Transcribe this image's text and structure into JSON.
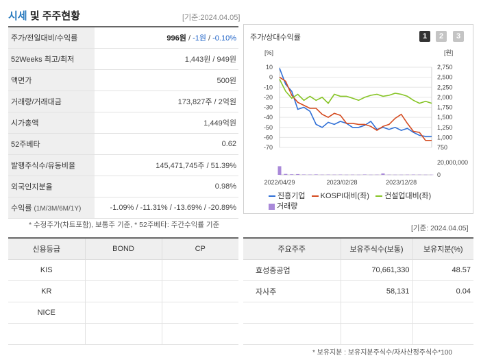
{
  "header": {
    "title_main": "시세",
    "title_rest": "및 주주현황",
    "date": "[기준:2024.04.05]"
  },
  "price_table": {
    "rows": [
      {
        "label": "주가/전일대비/수익률",
        "v1": "996원",
        "sep1": " / ",
        "v2": "-1원",
        "sep2": " / ",
        "v3": "-0.10%"
      },
      {
        "label": "52Weeks 최고/최저",
        "value": "1,443원 / 949원"
      },
      {
        "label": "액면가",
        "value": "500원"
      },
      {
        "label": "거래량/거래대금",
        "value": "173,827주 / 2억원"
      },
      {
        "label": "시가총액",
        "value": "1,449억원"
      },
      {
        "label": "52주베타",
        "value": "0.62"
      },
      {
        "label": "발행주식수/유동비율",
        "value": "145,471,745주 / 51.39%"
      },
      {
        "label": "외국인지분율",
        "value": "0.98%"
      },
      {
        "label": "수익률",
        "label_sub": "(1M/3M/6M/1Y)",
        "value": "-1.09% / -11.31% / -13.69% / -20.89%"
      }
    ],
    "note": "* 수정주가(차트포함), 보통주 기준, * 52주베타: 주간수익률 기준"
  },
  "chart_panel": {
    "title": "주가/상대수익률",
    "tabs": [
      "1",
      "2",
      "3"
    ],
    "legend": [
      {
        "name": "진흥기업",
        "color": "#2f6fd6"
      },
      {
        "name": "KOSPI대비(좌)",
        "color": "#d44a1f"
      },
      {
        "name": "건설업대비(좌)",
        "color": "#86c425"
      },
      {
        "name": "거래량",
        "color": "#a989d9"
      }
    ]
  },
  "chart_data": {
    "type": "line",
    "left_axis": {
      "unit": "[%]",
      "range": [
        -70,
        10
      ],
      "ticks": [
        "10",
        "0",
        "-10",
        "-20",
        "-30",
        "-40",
        "-50",
        "-60",
        "-70"
      ]
    },
    "right_axis": {
      "unit": "[원]",
      "range": [
        750,
        2750
      ],
      "ticks": [
        "2,750",
        "2,500",
        "2,250",
        "2,000",
        "1,750",
        "1,500",
        "1,250",
        "1,000",
        "750"
      ]
    },
    "volume_axis": {
      "ticks": [
        "20,000,000",
        "0"
      ],
      "range": [
        0,
        20000000
      ]
    },
    "x_labels": [
      "2022/04/29",
      "2023/02/28",
      "2023/12/28"
    ],
    "x_label_positions": [
      0,
      0.41,
      0.8
    ],
    "series": [
      {
        "name": "진흥기업",
        "values": [
          9,
          -7,
          -14,
          -32,
          -30,
          -34,
          -47,
          -50,
          -45,
          -47,
          -44,
          -46,
          -50,
          -50,
          -48,
          -44,
          -52,
          -50,
          -52,
          -50,
          -53,
          -51,
          -55,
          -58,
          -59,
          -59
        ]
      },
      {
        "name": "KOSPI대비(좌)",
        "values": [
          0,
          -4,
          -18,
          -25,
          -28,
          -31,
          -31,
          -37,
          -40,
          -36,
          -38,
          -46,
          -46,
          -47,
          -47,
          -49,
          -53,
          -49,
          -47,
          -41,
          -37,
          -46,
          -54,
          -55,
          -63,
          -63
        ]
      },
      {
        "name": "건설업대비(좌)",
        "values": [
          -2,
          -14,
          -21,
          -17,
          -23,
          -19,
          -23,
          -20,
          -26,
          -17,
          -19,
          -19,
          -21,
          -23,
          -20,
          -18,
          -17,
          -19,
          -18,
          -16,
          -17,
          -19,
          -23,
          -26,
          -24,
          -26
        ]
      }
    ],
    "volume": [
      14000000,
      1500000,
      900000,
      1200000,
      600000,
      500000,
      700000,
      400000,
      500000,
      400000,
      500000,
      300000,
      400000,
      300000,
      600000,
      300000,
      400000,
      2300000,
      400000,
      300000,
      300000,
      400000,
      500000,
      400000,
      300000,
      300000
    ],
    "grid": true
  },
  "date_right": "[기준: 2024.04.05]",
  "credit_table": {
    "headers": [
      "신용등급",
      "BOND",
      "CP"
    ],
    "rows": [
      [
        "KIS",
        "",
        ""
      ],
      [
        "KR",
        "",
        ""
      ],
      [
        "NICE",
        "",
        ""
      ],
      [
        "",
        "",
        ""
      ]
    ]
  },
  "shareholder_table": {
    "headers": [
      "주요주주",
      "보유주식수(보통)",
      "보유지분(%)"
    ],
    "rows": [
      [
        "효성중공업",
        "70,661,330",
        "48.57"
      ],
      [
        "자사주",
        "58,131",
        "0.04"
      ],
      [
        "",
        "",
        ""
      ],
      [
        "",
        "",
        ""
      ]
    ],
    "note": "* 보유지분 : 보유지분주식수/자사산정주식수*100"
  }
}
